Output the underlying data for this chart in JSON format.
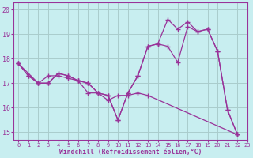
{
  "xlabel": "Windchill (Refroidissement éolien,°C)",
  "xlim": [
    -0.5,
    23
  ],
  "ylim": [
    14.7,
    20.3
  ],
  "yticks": [
    15,
    16,
    17,
    18,
    19,
    20
  ],
  "xticks": [
    0,
    1,
    2,
    3,
    4,
    5,
    6,
    7,
    8,
    9,
    10,
    11,
    12,
    13,
    14,
    15,
    16,
    17,
    18,
    19,
    20,
    21,
    22,
    23
  ],
  "bg_color": "#c8eef0",
  "line_color": "#993399",
  "grid_color": "#aacccc",
  "series1_x": [
    0,
    1,
    2,
    3,
    4,
    5,
    6,
    7,
    8,
    9,
    10,
    11,
    12,
    13,
    14,
    15,
    16,
    17,
    18,
    19,
    20,
    21,
    22
  ],
  "series1_y": [
    17.8,
    17.3,
    17.0,
    17.0,
    17.4,
    17.3,
    17.1,
    17.0,
    16.6,
    16.5,
    15.5,
    16.6,
    17.3,
    18.5,
    18.6,
    19.6,
    19.2,
    19.5,
    19.1,
    19.2,
    18.3,
    15.9,
    14.9
  ],
  "series2_x": [
    0,
    1,
    2,
    3,
    4,
    5,
    6,
    7,
    8,
    9,
    10,
    11,
    12,
    13,
    14,
    15,
    16,
    17,
    18,
    19,
    20,
    21,
    22
  ],
  "series2_y": [
    17.8,
    17.3,
    17.0,
    17.0,
    17.4,
    17.3,
    17.1,
    17.0,
    16.6,
    16.5,
    15.5,
    16.6,
    17.3,
    18.5,
    18.6,
    18.5,
    17.85,
    19.3,
    19.1,
    19.2,
    18.3,
    15.9,
    14.9
  ],
  "series3_x": [
    0,
    2,
    3,
    4,
    5,
    6,
    7,
    8,
    9,
    10,
    11,
    12,
    13,
    22
  ],
  "series3_y": [
    17.8,
    17.0,
    17.3,
    17.3,
    17.2,
    17.1,
    16.6,
    16.6,
    16.3,
    16.5,
    16.5,
    16.6,
    16.5,
    14.9
  ]
}
